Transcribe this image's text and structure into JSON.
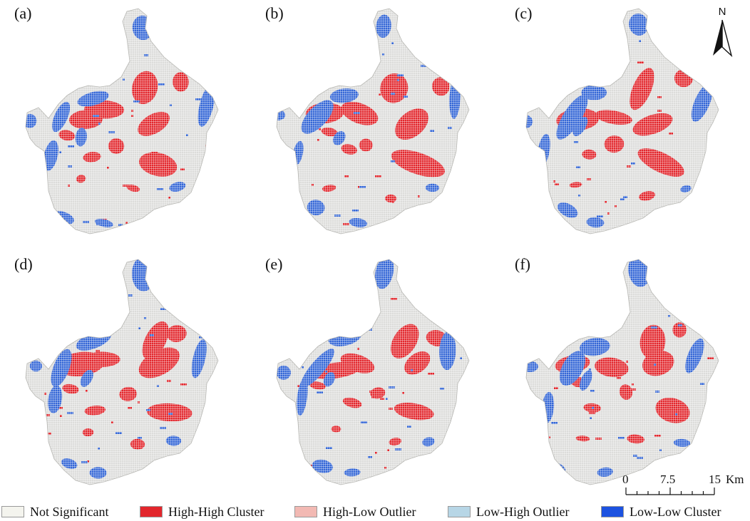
{
  "panels": [
    {
      "label": "(a)"
    },
    {
      "label": "(b)"
    },
    {
      "label": "(c)"
    },
    {
      "label": "(d)"
    },
    {
      "label": "(e)"
    },
    {
      "label": "(f)"
    }
  ],
  "north_arrow": {
    "letter": "N"
  },
  "scale_bar": {
    "ticks": [
      "0",
      "7.5",
      "15"
    ],
    "unit": "Km"
  },
  "legend": [
    {
      "label": "Not Significant",
      "color": "#f4f4ee"
    },
    {
      "label": "High-High Cluster",
      "color": "#e2262c"
    },
    {
      "label": "High-Low Outlier",
      "color": "#f2b9b3"
    },
    {
      "label": "Low-High Outlier",
      "color": "#b7d6e6"
    },
    {
      "label": "Low-Low Cluster",
      "color": "#1c52e0"
    }
  ],
  "map_colors": {
    "background": "#dcdcda",
    "grid": "#ffffff",
    "high_high": "#e2262c",
    "low_low": "#3466d6"
  }
}
